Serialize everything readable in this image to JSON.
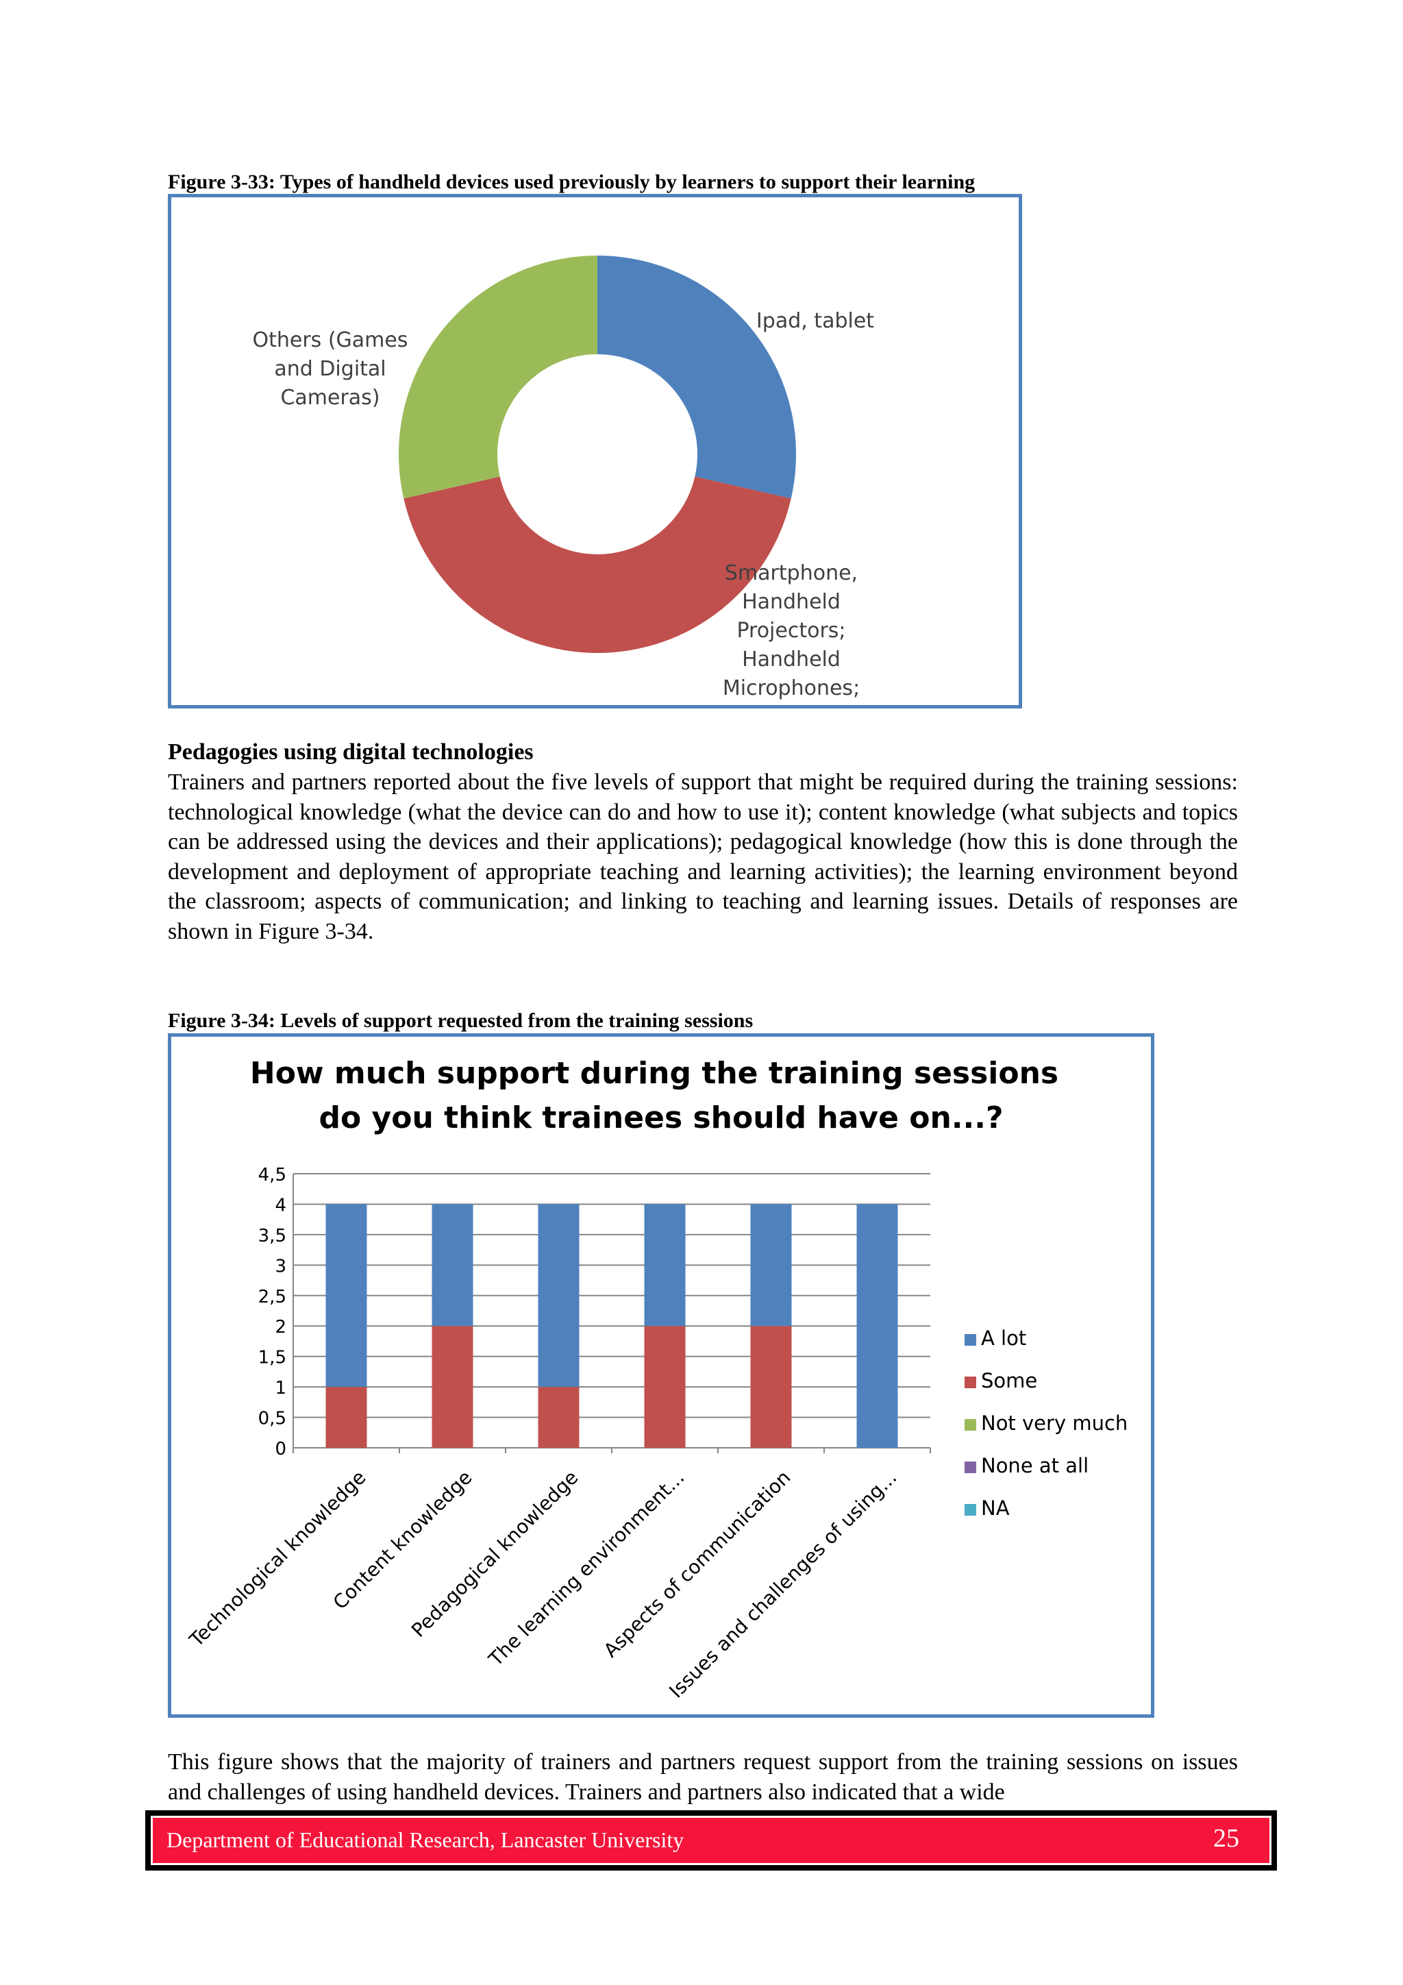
{
  "figure33": {
    "caption": "Figure 3-33: Types of handheld devices used previously by learners to support their learning",
    "chart_data": {
      "type": "pie",
      "categories": [
        "Ipad, tablet",
        "Smartphone, Handheld Projectors; Handheld Microphones;",
        "Others (Games and Digital Cameras)"
      ],
      "values": [
        28.6,
        42.9,
        28.6
      ],
      "colors": [
        "#4f81bd",
        "#c0504d",
        "#9bbb59"
      ],
      "labels": [
        [
          "Ipad, tablet"
        ],
        [
          "Smartphone,",
          "Handheld",
          "Projectors;",
          "Handheld",
          "Microphones;"
        ],
        [
          "Others (Games",
          "and Digital",
          "Cameras)"
        ]
      ]
    }
  },
  "section": {
    "heading": "Pedagogies using digital technologies",
    "paragraph": "Trainers and partners reported about the five levels of support that might be required during the training sessions: technological knowledge (what the device can do and how to use it); content knowledge (what subjects and topics can be addressed using the devices and their applications); pedagogical knowledge (how this is done through the development and deployment of appropriate teaching and learning activities); the learning environment beyond the classroom; aspects of communication; and linking to teaching and learning issues. Details of responses are shown in Figure 3-34."
  },
  "figure34": {
    "caption": "Figure 3-34: Levels of support requested from the training sessions",
    "chart_data": {
      "type": "bar",
      "stacked": true,
      "title": [
        "How much support during the training sessions",
        "do you think trainees should have on...?"
      ],
      "categories": [
        "Technological knowledge",
        "Content knowledge",
        "Pedagogical knowledge",
        "The learning environment...",
        "Aspects of communication",
        "Issues and challenges of using..."
      ],
      "series": [
        {
          "name": "A lot",
          "color": "#4f81bd",
          "values": [
            3,
            2,
            3,
            2,
            2,
            4
          ]
        },
        {
          "name": "Some",
          "color": "#c0504d",
          "values": [
            1,
            2,
            1,
            2,
            2,
            0
          ]
        },
        {
          "name": "Not very much",
          "color": "#9bbb59",
          "values": [
            0,
            0,
            0,
            0,
            0,
            0
          ]
        },
        {
          "name": "None at all",
          "color": "#8064a2",
          "values": [
            0,
            0,
            0,
            0,
            0,
            0
          ]
        },
        {
          "name": "NA",
          "color": "#4bacc6",
          "values": [
            0,
            0,
            0,
            0,
            0,
            0
          ]
        }
      ],
      "stack_order": [
        "Some",
        "A lot"
      ],
      "ylim": [
        0,
        4.5
      ],
      "yticks": [
        "0",
        "0,5",
        "1",
        "1,5",
        "2",
        "2,5",
        "3",
        "3,5",
        "4",
        "4,5"
      ],
      "grid": true,
      "legend": "right"
    }
  },
  "closing_paragraph": "This figure shows that the majority of trainers and partners request support from the training sessions on issues and challenges of using handheld devices. Trainers and partners also indicated that a wide",
  "footer": {
    "department": "Department of Educational Research, Lancaster University",
    "page_number": "25"
  }
}
